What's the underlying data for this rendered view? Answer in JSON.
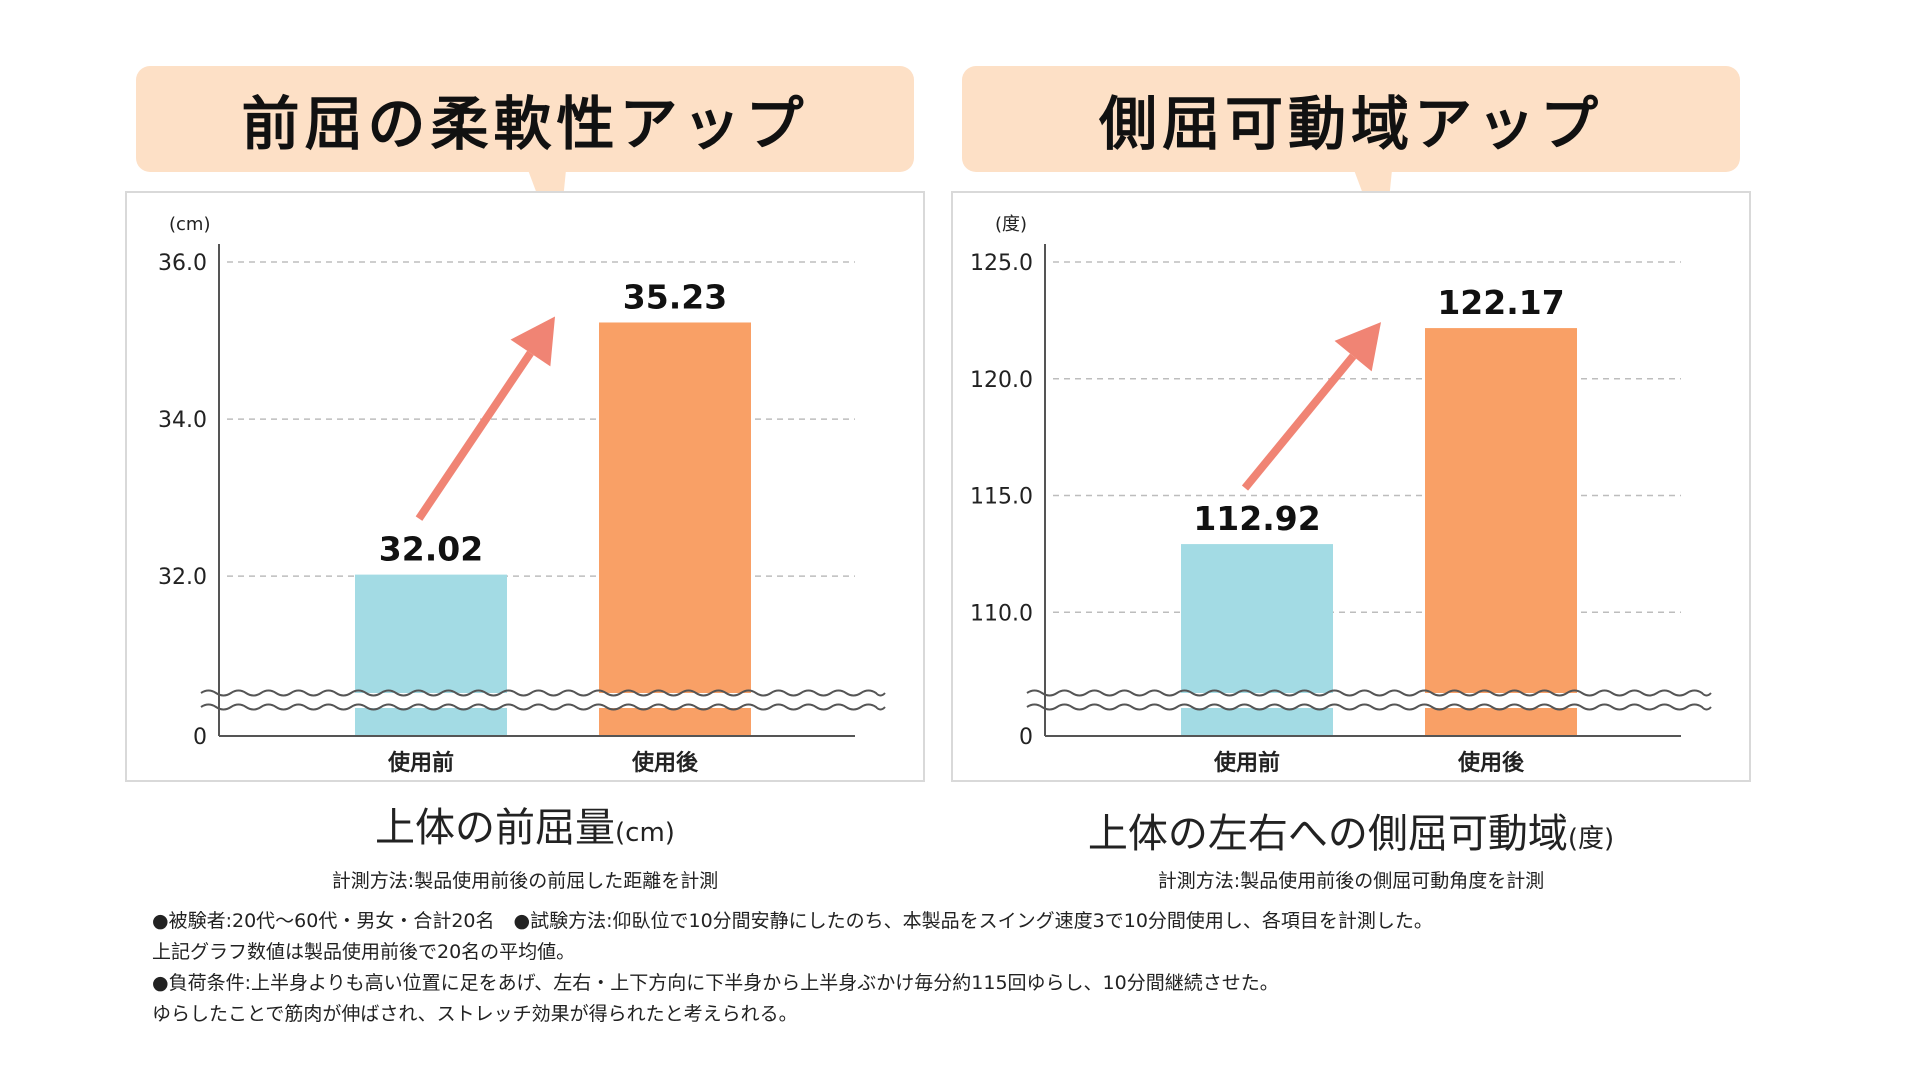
{
  "chart_data": [
    {
      "type": "bar",
      "title": "前屈の柔軟性アップ",
      "subtitle": "上体の前屈量",
      "subtitle_unit": "(cm)",
      "method": "計測方法:製品使用前後の前屈した距離を計測",
      "unit_label": "(cm)",
      "categories": [
        "使用前",
        "使用後"
      ],
      "values": [
        32.02,
        35.23
      ],
      "value_labels": [
        "32.02",
        "35.23"
      ],
      "colors": [
        "#a3dbe4",
        "#f9a066"
      ],
      "ylim": [
        30.5,
        36.0
      ],
      "ytick_values": [
        32.0,
        34.0,
        36.0
      ],
      "ytick_labels": [
        "32.0",
        "34.0",
        "36.0"
      ],
      "zero_label": "0",
      "axis_break": true,
      "grid": "dashed"
    },
    {
      "type": "bar",
      "title": "側屈可動域アップ",
      "subtitle": "上体の左右への側屈可動域",
      "subtitle_unit": "(度)",
      "method": "計測方法:製品使用前後の側屈可動角度を計測",
      "unit_label": "(度)",
      "categories": [
        "使用前",
        "使用後"
      ],
      "values": [
        112.92,
        122.17
      ],
      "value_labels": [
        "112.92",
        "122.17"
      ],
      "colors": [
        "#a3dbe4",
        "#f9a066"
      ],
      "ylim": [
        106.5,
        125.0
      ],
      "ytick_values": [
        110.0,
        115.0,
        120.0,
        125.0
      ],
      "ytick_labels": [
        "110.0",
        "115.0",
        "120.0",
        "125.0"
      ],
      "zero_label": "0",
      "axis_break": true,
      "grid": "dashed"
    }
  ],
  "arrow_color": "#f08474",
  "notes": [
    "●被験者:20代〜60代・男女・合計20名　●試験方法:仰臥位で10分間安静にしたのち、本製品をスイング速度3で10分間使用し、各項目を計測した。",
    "上記グラフ数値は製品使用前後で20名の平均値。",
    "●負荷条件:上半身よりも高い位置に足をあげ、左右・上下方向に下半身から上半身ぶかけ毎分約115回ゆらし、10分間継続させた。",
    "ゆらしたことで筋肉が伸ばされ、ストレッチ効果が得られたと考えられる。"
  ]
}
